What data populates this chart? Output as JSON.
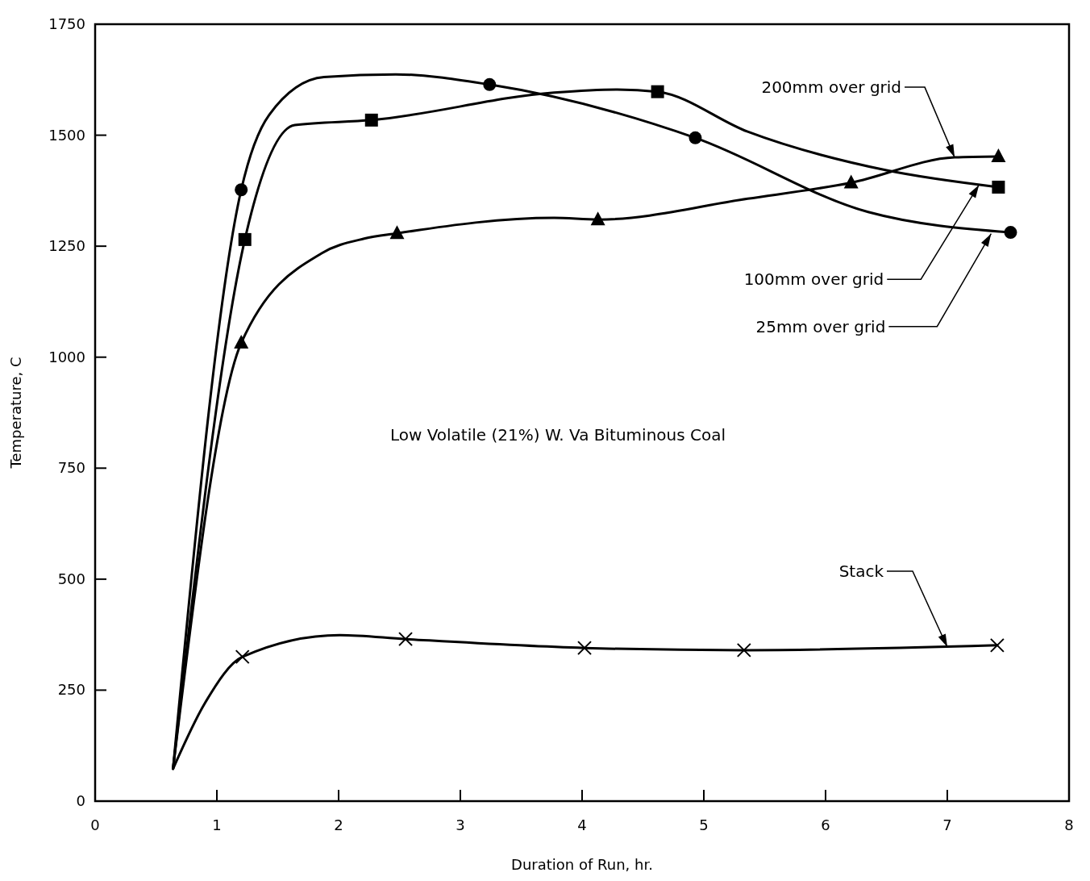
{
  "chart_data": {
    "type": "line",
    "xlabel": "Duration of Run, hr.",
    "ylabel": "Temperature, C",
    "xlim": [
      0,
      8
    ],
    "ylim": [
      0,
      1750
    ],
    "xticks": [
      0,
      1,
      2,
      3,
      4,
      5,
      6,
      7,
      8
    ],
    "yticks": [
      0,
      250,
      500,
      750,
      1000,
      1250,
      1500,
      1750
    ],
    "line_style": "solid",
    "series": [
      {
        "color": "#000000",
        "marker": "none",
        "x": [
          0.64,
          1.2,
          1.43,
          1.88,
          2.47,
          3.24,
          4.93,
          6.35,
          7.52
        ],
        "values": [
          73,
          1377,
          1546,
          1631,
          1637,
          1614,
          1494,
          1327,
          1281
        ]
      },
      {
        "color": "#000000",
        "marker": "none",
        "x": [
          0.64,
          1.23,
          1.64,
          2.27,
          3.77,
          4.29,
          4.62,
          5.36,
          6.5,
          7.42
        ],
        "values": [
          73,
          1265,
          1523,
          1534,
          1596,
          1603,
          1598,
          1508,
          1421,
          1383
        ]
      },
      {
        "color": "#000000",
        "marker": "none",
        "x": [
          0.64,
          1.2,
          1.86,
          2.21,
          2.48,
          3.77,
          4.13,
          5.36,
          6.21,
          7.06,
          7.42
        ],
        "values": [
          73,
          1032,
          1234,
          1267,
          1279,
          1314,
          1310,
          1357,
          1393,
          1450,
          1452
        ]
      },
      {
        "color": "#000000",
        "marker": "none",
        "x": [
          0.64,
          0.9,
          1.21,
          2.01,
          2.55,
          4.02,
          5.33,
          7.41
        ],
        "values": [
          73,
          220,
          325,
          374,
          365,
          345,
          340,
          351
        ]
      },
      {
        "type": "scatter",
        "color": "#000000",
        "marker": "circle",
        "x": [
          1.2,
          3.24,
          4.93,
          7.52
        ],
        "values": [
          1377,
          1614,
          1494,
          1281
        ]
      },
      {
        "type": "scatter",
        "color": "#000000",
        "marker": "square",
        "x": [
          1.23,
          2.27,
          4.62,
          7.42
        ],
        "values": [
          1265,
          1534,
          1598,
          1383
        ]
      },
      {
        "type": "scatter",
        "color": "#000000",
        "marker": "triangle",
        "x": [
          1.2,
          2.48,
          4.13,
          6.21,
          7.42
        ],
        "values": [
          1032,
          1279,
          1310,
          1393,
          1452
        ]
      },
      {
        "type": "scatter",
        "color": "#000000",
        "marker": "cross",
        "x": [
          1.21,
          2.55,
          4.02,
          5.33,
          7.41
        ],
        "values": [
          325,
          365,
          345,
          340,
          351
        ]
      }
    ],
    "annotations": [
      {
        "text": "200mm over grid",
        "x": 7.06,
        "y": 1450
      },
      {
        "text": "100mm over grid",
        "x": 7.26,
        "y": 1388
      },
      {
        "text": "25mm over grid",
        "x": 7.36,
        "y": 1278
      },
      {
        "text": "Stack",
        "x": 7.0,
        "y": 347
      },
      "Low Volatile (21%) W. Va Bituminous Coal"
    ]
  }
}
